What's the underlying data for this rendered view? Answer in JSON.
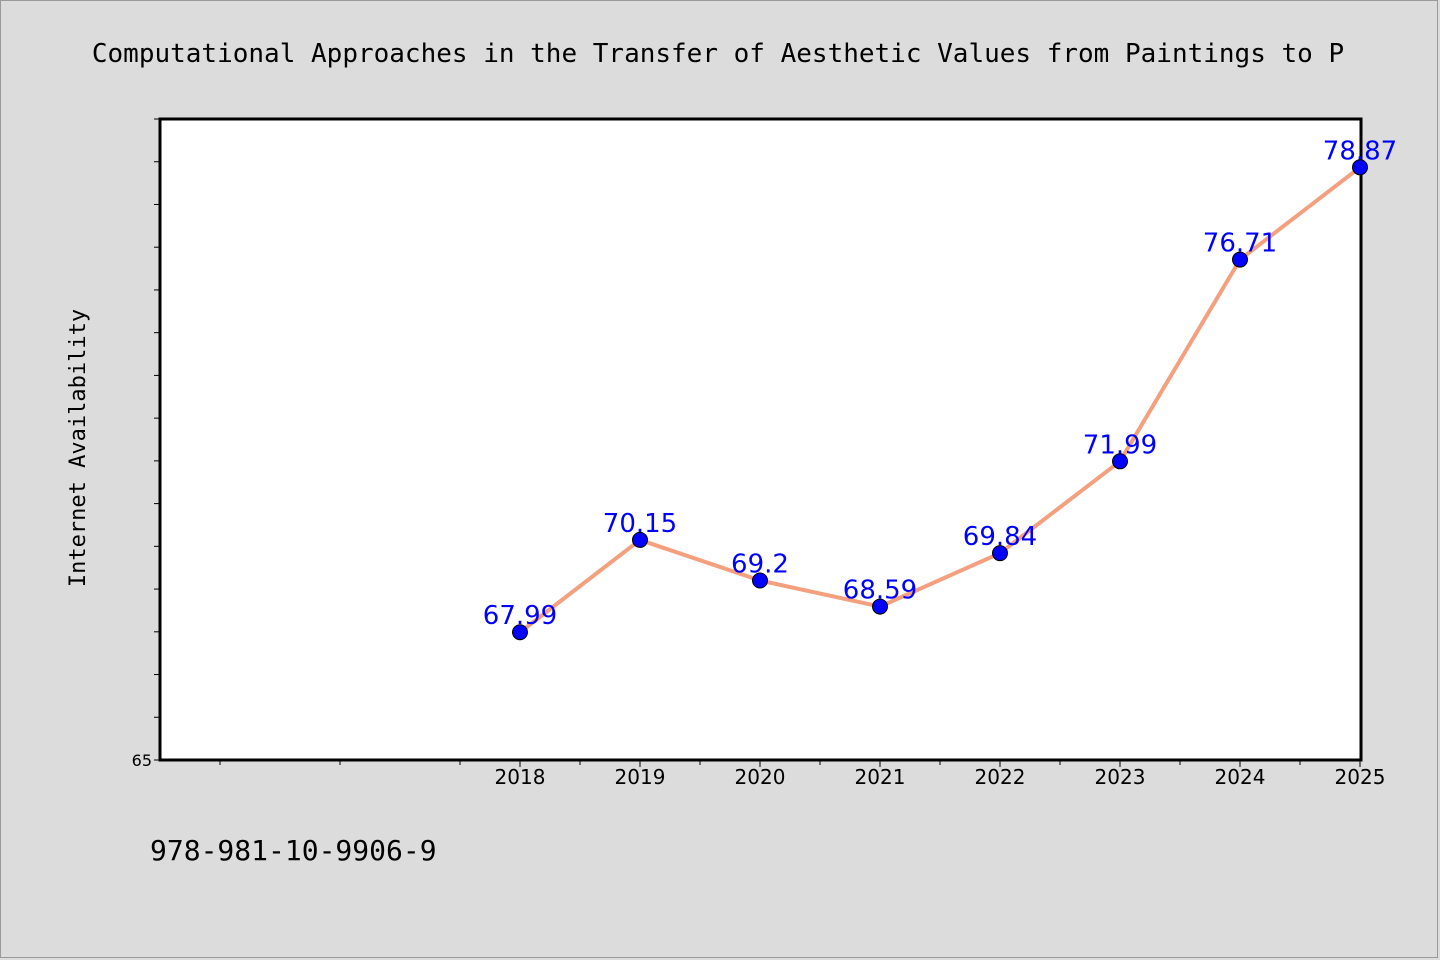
{
  "chart_data": {
    "type": "line",
    "title": "Computational Approaches in the Transfer of Aesthetic Values from Paintings to P",
    "xlabel": "",
    "ylabel": "Internet Availability",
    "categories": [
      "2018",
      "2019",
      "2020",
      "2021",
      "2022",
      "2023",
      "2024",
      "2025"
    ],
    "series": [
      {
        "values": [
          67.99,
          70.15,
          69.2,
          68.59,
          69.84,
          71.99,
          76.71,
          78.87
        ]
      }
    ],
    "data_labels": [
      "67.99",
      "70.15",
      "69.2",
      "68.59",
      "69.84",
      "71.99",
      "76.71",
      "78.87"
    ],
    "ylim": [
      65,
      80
    ],
    "y_tick_labels": [
      "65"
    ],
    "x_start": 2015.5,
    "grid": false,
    "legend": "none",
    "colors": {
      "line": "#f4a07e",
      "marker": "#0000ff",
      "label": "#0000ff",
      "background": "#dcdcdc",
      "plot_bg": "#ffffff"
    }
  },
  "footer_note": "978-981-10-9906-9"
}
